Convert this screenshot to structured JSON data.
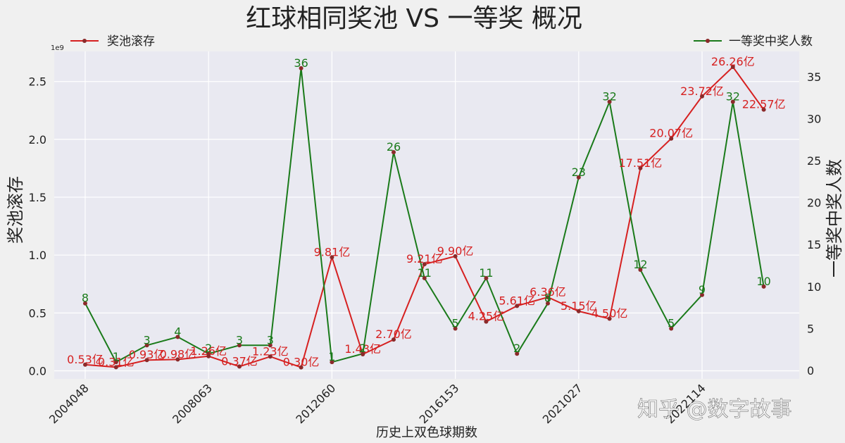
{
  "chart_data": {
    "type": "line",
    "title": "红球相同奖池 VS 一等奖 概况",
    "xlabel": "历史上双色球期数",
    "ylabel_left": "奖池滚存",
    "ylabel_right": "一等奖中奖人数",
    "left_axis_exponent": "1e9",
    "x_tick_labels": [
      "2004048",
      "2008063",
      "2012060",
      "2016153",
      "2021027",
      "2022114"
    ],
    "ylim_left": [
      -0.07,
      2.76
    ],
    "yticks_left": [
      "0.0",
      "0.5",
      "1.0",
      "1.5",
      "2.0",
      "2.5"
    ],
    "ylim_right": [
      -1,
      38
    ],
    "yticks_right": [
      "0",
      "5",
      "10",
      "15",
      "20",
      "25",
      "30",
      "35"
    ],
    "grid": true,
    "series": [
      {
        "name": "奖池滚存",
        "axis": "left",
        "color": "#d62020",
        "values": [
          0.053,
          0.031,
          0.093,
          0.098,
          0.126,
          0.037,
          0.123,
          0.03,
          0.981,
          0.143,
          0.27,
          0.921,
          0.99,
          0.425,
          0.561,
          0.636,
          0.515,
          0.45,
          1.751,
          2.007,
          2.372,
          2.626,
          2.257
        ],
        "labels": [
          "0.53亿",
          "0.31亿",
          "0.93亿",
          "0.98亿",
          "1.26亿",
          "0.37亿",
          "1.23亿",
          "0.30亿",
          "9.81亿",
          "1.43亿",
          "2.70亿",
          "9.21亿",
          "9.90亿",
          "4.25亿",
          "5.61亿",
          "6.36亿",
          "5.15亿",
          "4.50亿",
          "17.51亿",
          "20.07亿",
          "23.72亿",
          "26.26亿",
          "22.57亿"
        ]
      },
      {
        "name": "一等奖中奖人数",
        "axis": "right",
        "color": "#1a7a1a",
        "values": [
          8,
          1,
          3,
          4,
          2,
          3,
          3,
          36,
          1,
          2,
          26,
          11,
          5,
          11,
          2,
          8,
          23,
          32,
          12,
          5,
          9,
          32,
          10
        ]
      }
    ],
    "legend": {
      "left_position": "top-left",
      "right_position": "top-right"
    }
  },
  "watermark": "知乎 @数字故事"
}
